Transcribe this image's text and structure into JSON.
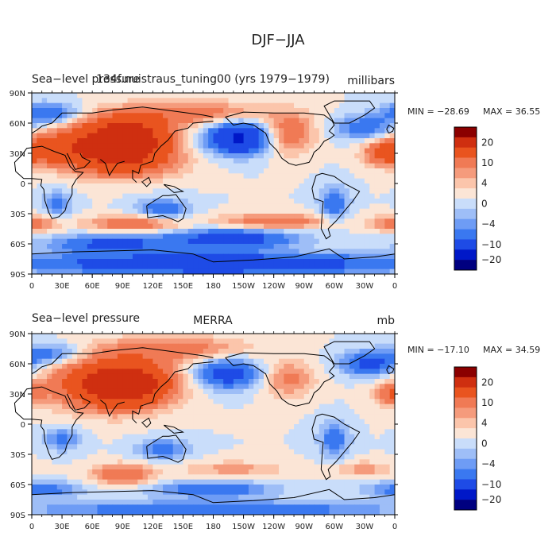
{
  "figure_title": "DJF−JJA",
  "chart_data": [
    {
      "type": "heatmap",
      "left_title": "Sea−level pressure",
      "center_title": "134f.nuistraus_tuning00 (yrs 1979−1979)",
      "units": "millibars",
      "min_label": "MIN = −28.69",
      "max_label": "MAX =  36.55",
      "min_value": -28.69,
      "max_value": 36.55,
      "x_ticks": [
        "0",
        "30E",
        "60E",
        "90E",
        "120E",
        "150E",
        "180",
        "150W",
        "120W",
        "90W",
        "60W",
        "30W",
        "0"
      ],
      "y_ticks": [
        "90N",
        "60N",
        "30N",
        "0",
        "30S",
        "60S",
        "90S"
      ],
      "colorbar_labels": [
        "20",
        "10",
        "4",
        "0",
        "−4",
        "−10",
        "−20"
      ],
      "blobs": [
        {
          "lon": 95,
          "lat": 45,
          "value": 26,
          "rx": 40,
          "ry": 20
        },
        {
          "lon": 70,
          "lat": 35,
          "value": 14,
          "rx": 50,
          "ry": 22
        },
        {
          "lon": 20,
          "lat": 35,
          "value": 10,
          "rx": 35,
          "ry": 15
        },
        {
          "lon": 100,
          "lat": 20,
          "value": 8,
          "rx": 50,
          "ry": 15
        },
        {
          "lon": 160,
          "lat": 70,
          "value": 8,
          "rx": 70,
          "ry": 12
        },
        {
          "lon": 255,
          "lat": 50,
          "value": 9,
          "rx": 25,
          "ry": 20
        },
        {
          "lon": 350,
          "lat": 30,
          "value": 10,
          "rx": 20,
          "ry": 12
        },
        {
          "lon": 205,
          "lat": 45,
          "value": -22,
          "rx": 30,
          "ry": 15
        },
        {
          "lon": 330,
          "lat": 55,
          "value": -9,
          "rx": 28,
          "ry": 12
        },
        {
          "lon": 15,
          "lat": 70,
          "value": -10,
          "rx": 30,
          "ry": 10
        },
        {
          "lon": 130,
          "lat": -25,
          "value": -9,
          "rx": 25,
          "ry": 10
        },
        {
          "lon": 300,
          "lat": -20,
          "value": -8,
          "rx": 15,
          "ry": 18
        },
        {
          "lon": 25,
          "lat": -20,
          "value": -7,
          "rx": 15,
          "ry": 12
        },
        {
          "lon": 100,
          "lat": -40,
          "value": 9,
          "rx": 45,
          "ry": 8
        },
        {
          "lon": 240,
          "lat": -38,
          "value": 9,
          "rx": 55,
          "ry": 8
        },
        {
          "lon": 0,
          "lat": -40,
          "value": 8,
          "rx": 25,
          "ry": 8
        },
        {
          "lon": 200,
          "lat": -55,
          "value": -14,
          "rx": 60,
          "ry": 10
        },
        {
          "lon": 80,
          "lat": -60,
          "value": -12,
          "rx": 60,
          "ry": 9
        },
        {
          "lon": 180,
          "lat": -80,
          "value": -18,
          "rx": 180,
          "ry": 10
        }
      ]
    },
    {
      "type": "heatmap",
      "left_title": "Sea−level pressure",
      "center_title": "MERRA",
      "units": "mb",
      "min_label": "MIN = −17.10",
      "max_label": "MAX =  34.59",
      "min_value": -17.1,
      "max_value": 34.59,
      "x_ticks": [
        "0",
        "30E",
        "60E",
        "90E",
        "120E",
        "150E",
        "180",
        "150W",
        "120W",
        "90W",
        "60W",
        "30W",
        "0"
      ],
      "y_ticks": [
        "90N",
        "60N",
        "30N",
        "0",
        "30S",
        "60S",
        "90S"
      ],
      "colorbar_labels": [
        "20",
        "10",
        "4",
        "0",
        "−4",
        "−10",
        "−20"
      ],
      "blobs": [
        {
          "lon": 95,
          "lat": 40,
          "value": 24,
          "rx": 40,
          "ry": 20
        },
        {
          "lon": 70,
          "lat": 40,
          "value": 14,
          "rx": 55,
          "ry": 25
        },
        {
          "lon": 140,
          "lat": 75,
          "value": 8,
          "rx": 70,
          "ry": 12
        },
        {
          "lon": 255,
          "lat": 45,
          "value": 7,
          "rx": 25,
          "ry": 18
        },
        {
          "lon": 355,
          "lat": 30,
          "value": 9,
          "rx": 15,
          "ry": 10
        },
        {
          "lon": 195,
          "lat": 50,
          "value": -14,
          "rx": 30,
          "ry": 14
        },
        {
          "lon": 335,
          "lat": 60,
          "value": -12,
          "rx": 28,
          "ry": 12
        },
        {
          "lon": 20,
          "lat": 70,
          "value": -8,
          "rx": 30,
          "ry": 10
        },
        {
          "lon": 30,
          "lat": -15,
          "value": -7,
          "rx": 18,
          "ry": 12
        },
        {
          "lon": 130,
          "lat": -25,
          "value": -8,
          "rx": 25,
          "ry": 10
        },
        {
          "lon": 300,
          "lat": -15,
          "value": -8,
          "rx": 15,
          "ry": 18
        },
        {
          "lon": 90,
          "lat": -50,
          "value": 10,
          "rx": 30,
          "ry": 10
        },
        {
          "lon": 200,
          "lat": -45,
          "value": 5,
          "rx": 50,
          "ry": 8
        },
        {
          "lon": 330,
          "lat": -45,
          "value": 5,
          "rx": 30,
          "ry": 8
        },
        {
          "lon": 180,
          "lat": -65,
          "value": -9,
          "rx": 60,
          "ry": 8
        },
        {
          "lon": 10,
          "lat": -65,
          "value": -8,
          "rx": 40,
          "ry": 8
        },
        {
          "lon": 180,
          "lat": -85,
          "value": -10,
          "rx": 180,
          "ry": 8
        }
      ]
    }
  ],
  "colors": {
    "levels": [
      -20,
      -10,
      -6,
      -4,
      -2,
      0,
      2,
      4,
      6,
      10,
      20
    ],
    "palette": [
      "#000080",
      "#0018c8",
      "#1e4be6",
      "#3a78f0",
      "#6e9cf5",
      "#9ebef7",
      "#c9ddfa",
      "#fbe5d6",
      "#fbc5ab",
      "#f59b7c",
      "#f07a55",
      "#e9541f",
      "#cf2f10",
      "#8b0000"
    ]
  }
}
